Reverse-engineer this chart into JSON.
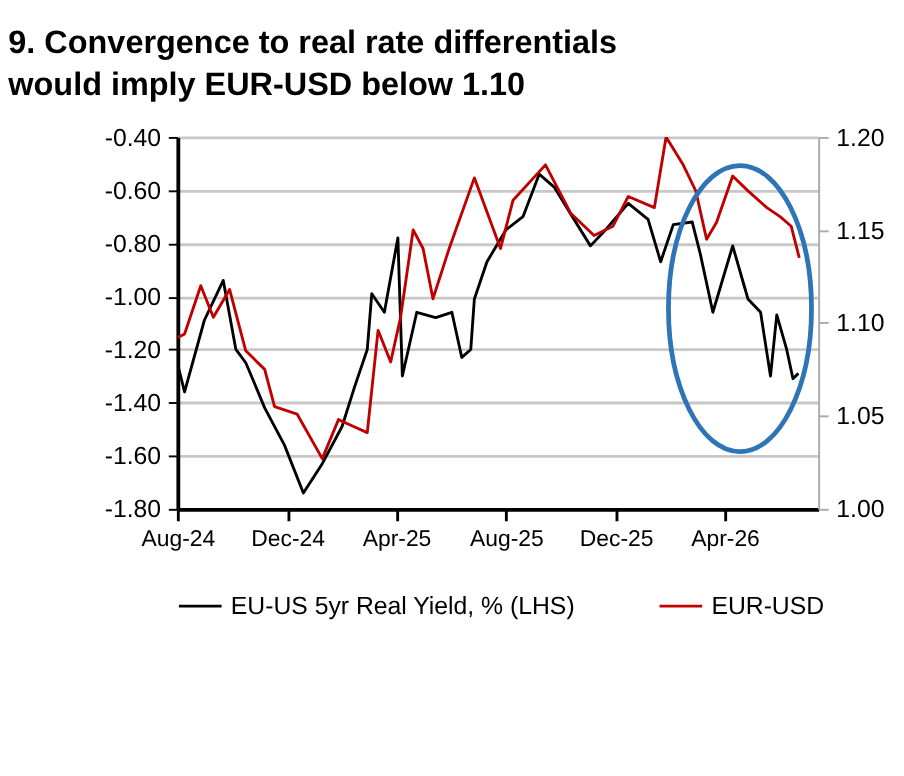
{
  "chart_data": {
    "type": "line",
    "title": "9. Convergence to real rate differentials would imply EUR-USD below 1.10",
    "xlim": [
      "2024-08-01",
      "2026-07-14"
    ],
    "xticks": [
      {
        "value": "2024-08-01",
        "label": "Aug-24"
      },
      {
        "value": "2024-12-01",
        "label": "Dec-24"
      },
      {
        "value": "2025-04-01",
        "label": "Apr-25"
      },
      {
        "value": "2025-08-01",
        "label": "Aug-25"
      },
      {
        "value": "2025-12-01",
        "label": "Dec-25"
      },
      {
        "value": "2026-04-01",
        "label": "Apr-26"
      }
    ],
    "ylim": [
      -1.8,
      -0.4
    ],
    "yticks": [
      {
        "value": -1.8,
        "label": "-1.80"
      },
      {
        "value": -1.6,
        "label": "-1.60"
      },
      {
        "value": -1.4,
        "label": "-1.40"
      },
      {
        "value": -1.2,
        "label": "-1.20"
      },
      {
        "value": -1.0,
        "label": "-1.00"
      },
      {
        "value": -0.8,
        "label": "-0.80"
      },
      {
        "value": -0.6,
        "label": "-0.60"
      },
      {
        "value": -0.4,
        "label": "-0.40"
      }
    ],
    "y2lim": [
      1.0,
      1.2
    ],
    "y2ticks": [
      {
        "value": 1.0,
        "label": "1.00"
      },
      {
        "value": 1.05,
        "label": "1.05"
      },
      {
        "value": 1.1,
        "label": "1.10"
      },
      {
        "value": 1.15,
        "label": "1.15"
      },
      {
        "value": 1.2,
        "label": "1.20"
      }
    ],
    "grid": "y",
    "legend": "bottom",
    "series": [
      {
        "name": "EU-US 5yr Real Yield, % (LHS)",
        "color": "#000000",
        "x": [
          "2024-08-01",
          "2024-08-09",
          "2024-08-31",
          "2024-09-21",
          "2024-10-05",
          "2024-10-16",
          "2024-10-26",
          "2024-11-06",
          "2024-11-28",
          "2024-12-19",
          "2025-01-09",
          "2025-01-31",
          "2025-02-14",
          "2025-02-28",
          "2025-03-05",
          "2025-03-19",
          "2025-04-03",
          "2025-04-08",
          "2025-04-24",
          "2025-05-15",
          "2025-06-02",
          "2025-06-13",
          "2025-06-23",
          "2025-06-27",
          "2025-07-11",
          "2025-08-01",
          "2025-08-20",
          "2025-09-07",
          "2025-09-24",
          "2025-10-12",
          "2025-11-03",
          "2025-11-17",
          "2025-12-15",
          "2026-01-06",
          "2026-01-20",
          "2026-02-03",
          "2026-02-24",
          "2026-03-05",
          "2026-03-19",
          "2026-04-10",
          "2026-04-27",
          "2026-05-11",
          "2026-05-22",
          "2026-05-29",
          "2026-06-09",
          "2026-06-16",
          "2026-06-22"
        ],
        "values": [
          -1.25,
          -1.36,
          -1.09,
          -0.94,
          -1.2,
          -1.25,
          -1.33,
          -1.42,
          -1.56,
          -1.74,
          -1.63,
          -1.49,
          -1.34,
          -1.2,
          -0.99,
          -1.06,
          -0.78,
          -1.3,
          -1.06,
          -1.08,
          -1.06,
          -1.23,
          -1.2,
          -1.01,
          -0.87,
          -0.75,
          -0.7,
          -0.54,
          -0.59,
          -0.69,
          -0.81,
          -0.76,
          -0.65,
          -0.71,
          -0.87,
          -0.73,
          -0.72,
          -0.84,
          -1.06,
          -0.81,
          -1.01,
          -1.06,
          -1.3,
          -1.07,
          -1.2,
          -1.31,
          -1.29
        ]
      },
      {
        "name": "EUR-USD",
        "color": "#c00000",
        "axis": "y2",
        "x": [
          "2024-08-01",
          "2024-08-09",
          "2024-08-27",
          "2024-09-10",
          "2024-09-28",
          "2024-10-16",
          "2024-11-06",
          "2024-11-17",
          "2024-12-12",
          "2025-01-09",
          "2025-01-27",
          "2025-02-14",
          "2025-02-28",
          "2025-03-12",
          "2025-03-26",
          "2025-04-06",
          "2025-04-20",
          "2025-05-01",
          "2025-05-12",
          "2025-05-30",
          "2025-06-27",
          "2025-07-26",
          "2025-08-09",
          "2025-09-14",
          "2025-10-12",
          "2025-11-07",
          "2025-11-28",
          "2025-12-15",
          "2026-01-13",
          "2026-01-26",
          "2026-02-14",
          "2026-02-28",
          "2026-03-12",
          "2026-03-23",
          "2026-04-10",
          "2026-04-27",
          "2026-05-18",
          "2026-06-02",
          "2026-06-14",
          "2026-06-23"
        ],
        "values": [
          1.092,
          1.094,
          1.12,
          1.103,
          1.118,
          1.085,
          1.075,
          1.055,
          1.051,
          1.027,
          1.048,
          1.044,
          1.041,
          1.096,
          1.079,
          1.103,
          1.15,
          1.14,
          1.113,
          1.14,
          1.178,
          1.14,
          1.166,
          1.185,
          1.159,
          1.147,
          1.152,
          1.168,
          1.162,
          1.2,
          1.185,
          1.171,
          1.145,
          1.154,
          1.179,
          1.171,
          1.162,
          1.157,
          1.152,
          1.135
        ]
      }
    ]
  }
}
